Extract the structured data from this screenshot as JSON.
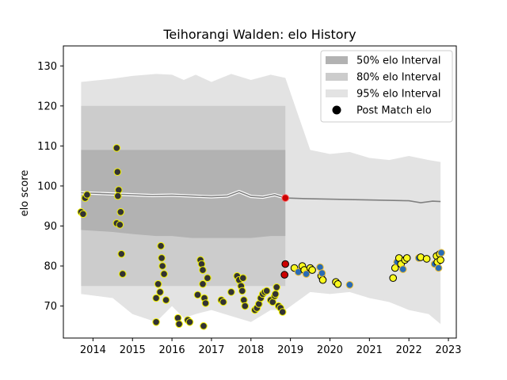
{
  "chart_data": {
    "type": "scatter",
    "title": "Teihorangi Walden: elo History",
    "xlabel": "",
    "ylabel": "elo score",
    "xlim": [
      2013.25,
      2023.2
    ],
    "ylim": [
      62,
      135
    ],
    "x_ticks": [
      "2014",
      "2015",
      "2016",
      "2017",
      "2018",
      "2019",
      "2020",
      "2021",
      "2022",
      "2023"
    ],
    "y_ticks": [
      "70",
      "80",
      "90",
      "100",
      "110",
      "120",
      "130"
    ],
    "grid": false,
    "legend_position": "top-right",
    "forecast_start": 2018.87,
    "colors": {
      "band_50": "#b2b2b2",
      "band_80": "#cccccc",
      "band_95": "#e3e3e3",
      "mean_line_history": "#808080",
      "mean_line_forecast": "#808080",
      "history_point_fill": "#333333",
      "history_point_edge": "#f2f200",
      "forecast_point_fill_a": "#fafa1e",
      "forecast_point_fill_b": "#2a6bb5",
      "forecast_point_edge_a": "#000000",
      "forecast_point_edge_b": "#f0c030",
      "current_point": "#cc0000"
    },
    "legend": [
      {
        "label": "50% elo Interval",
        "kind": "band_50"
      },
      {
        "label": "80% elo Interval",
        "kind": "band_80"
      },
      {
        "label": "95% elo Interval",
        "kind": "band_95"
      },
      {
        "label": "Post Match elo",
        "kind": "point"
      }
    ],
    "mean_line": [
      [
        2013.7,
        98.3
      ],
      [
        2014.5,
        98.0
      ],
      [
        2015.0,
        97.8
      ],
      [
        2015.5,
        97.6
      ],
      [
        2016.0,
        97.7
      ],
      [
        2016.5,
        97.5
      ],
      [
        2017.0,
        97.3
      ],
      [
        2017.4,
        97.5
      ],
      [
        2017.7,
        98.6
      ],
      [
        2018.0,
        97.4
      ],
      [
        2018.3,
        97.2
      ],
      [
        2018.6,
        97.8
      ],
      [
        2018.87,
        97.0
      ],
      [
        2019.5,
        96.8
      ],
      [
        2020.0,
        96.7
      ],
      [
        2020.5,
        96.6
      ],
      [
        2021.0,
        96.5
      ],
      [
        2021.5,
        96.4
      ],
      [
        2022.0,
        96.3
      ],
      [
        2022.3,
        95.8
      ],
      [
        2022.6,
        96.2
      ],
      [
        2022.8,
        96.1
      ]
    ],
    "band_95": {
      "x": [
        2013.7,
        2014.5,
        2015.0,
        2015.6,
        2016.0,
        2016.3,
        2016.6,
        2017.0,
        2017.5,
        2018.0,
        2018.5,
        2018.87,
        2019.5,
        2020.0,
        2020.5,
        2021.0,
        2021.5,
        2022.0,
        2022.5,
        2022.8
      ],
      "upper": [
        126.0,
        126.8,
        127.5,
        128.0,
        127.8,
        126.5,
        127.8,
        126.0,
        128.0,
        126.5,
        127.8,
        127.0,
        109.0,
        108.0,
        108.5,
        107.0,
        106.5,
        107.5,
        106.5,
        106.0
      ],
      "lower": [
        73.0,
        72.0,
        68.0,
        66.0,
        70.0,
        67.0,
        68.0,
        69.0,
        67.5,
        66.0,
        69.0,
        69.0,
        73.5,
        73.0,
        73.5,
        72.0,
        71.0,
        69.0,
        68.0,
        65.5
      ]
    },
    "band_80": {
      "x": [
        2013.7,
        2014.5,
        2015.0,
        2015.6,
        2016.0,
        2016.5,
        2017.0,
        2017.5,
        2018.0,
        2018.5,
        2018.87
      ],
      "upper": [
        120.0,
        120.0,
        120.0,
        120.0,
        120.0,
        120.0,
        120.0,
        120.0,
        120.0,
        120.0,
        120.0
      ],
      "lower": [
        75.0,
        75.0,
        75.0,
        75.0,
        75.0,
        75.0,
        75.0,
        75.0,
        75.0,
        75.0,
        75.0
      ]
    },
    "band_50": {
      "x": [
        2013.7,
        2014.5,
        2015.0,
        2015.6,
        2016.0,
        2016.5,
        2017.0,
        2017.5,
        2018.0,
        2018.5,
        2018.87
      ],
      "upper": [
        109.0,
        109.0,
        109.0,
        109.0,
        109.0,
        109.0,
        109.0,
        109.0,
        109.0,
        109.0,
        109.0
      ],
      "lower": [
        89.0,
        88.5,
        88.0,
        87.5,
        87.5,
        87.0,
        87.0,
        87.0,
        87.0,
        87.5,
        87.5
      ]
    },
    "history_points": [
      [
        2013.7,
        93.5
      ],
      [
        2013.75,
        93.0
      ],
      [
        2013.8,
        97.0
      ],
      [
        2013.85,
        97.8
      ],
      [
        2014.6,
        109.5
      ],
      [
        2014.62,
        103.5
      ],
      [
        2014.65,
        99.0
      ],
      [
        2014.63,
        97.5
      ],
      [
        2014.7,
        93.5
      ],
      [
        2014.6,
        90.7
      ],
      [
        2014.68,
        90.3
      ],
      [
        2014.72,
        83.0
      ],
      [
        2014.75,
        78.0
      ],
      [
        2015.6,
        72.0
      ],
      [
        2015.65,
        75.5
      ],
      [
        2015.7,
        73.5
      ],
      [
        2015.72,
        85.0
      ],
      [
        2015.74,
        82.0
      ],
      [
        2015.76,
        80.0
      ],
      [
        2015.8,
        78.0
      ],
      [
        2015.85,
        71.5
      ],
      [
        2015.6,
        66.0
      ],
      [
        2016.15,
        67.0
      ],
      [
        2016.18,
        65.5
      ],
      [
        2016.4,
        66.5
      ],
      [
        2016.45,
        66.0
      ],
      [
        2016.65,
        72.8
      ],
      [
        2016.72,
        81.5
      ],
      [
        2016.75,
        80.5
      ],
      [
        2016.78,
        79.0
      ],
      [
        2016.82,
        72.0
      ],
      [
        2016.85,
        70.7
      ],
      [
        2016.78,
        75.5
      ],
      [
        2016.9,
        77.0
      ],
      [
        2016.8,
        65.0
      ],
      [
        2017.25,
        71.5
      ],
      [
        2017.3,
        71.0
      ],
      [
        2017.5,
        73.5
      ],
      [
        2017.65,
        77.5
      ],
      [
        2017.7,
        76.5
      ],
      [
        2017.75,
        75.0
      ],
      [
        2017.78,
        73.8
      ],
      [
        2017.8,
        77.0
      ],
      [
        2017.82,
        71.5
      ],
      [
        2017.85,
        70.0
      ],
      [
        2018.1,
        69.0
      ],
      [
        2018.15,
        69.5
      ],
      [
        2018.2,
        70.5
      ],
      [
        2018.25,
        72.0
      ],
      [
        2018.3,
        73.0
      ],
      [
        2018.35,
        73.5
      ],
      [
        2018.4,
        73.8
      ],
      [
        2018.5,
        71.5
      ],
      [
        2018.55,
        71.0
      ],
      [
        2018.6,
        72.5
      ],
      [
        2018.62,
        73.0
      ],
      [
        2018.65,
        74.7
      ],
      [
        2018.7,
        70.0
      ],
      [
        2018.75,
        69.5
      ],
      [
        2018.8,
        68.5
      ],
      [
        2018.85,
        77.8
      ],
      [
        2018.87,
        80.5
      ]
    ],
    "current_point": [
      2018.87,
      97.0
    ],
    "forecast_points": [
      [
        2019.1,
        79.5
      ],
      [
        2019.2,
        78.5
      ],
      [
        2019.3,
        80.0
      ],
      [
        2019.35,
        79.0
      ],
      [
        2019.4,
        78.0
      ],
      [
        2019.5,
        79.5
      ],
      [
        2019.55,
        79.0
      ],
      [
        2019.75,
        79.7
      ],
      [
        2019.78,
        77.5
      ],
      [
        2019.82,
        76.5
      ],
      [
        2019.8,
        78.2
      ],
      [
        2020.15,
        76.0
      ],
      [
        2020.2,
        75.5
      ],
      [
        2020.5,
        75.3
      ],
      [
        2021.6,
        77.0
      ],
      [
        2021.65,
        79.5
      ],
      [
        2021.7,
        81.0
      ],
      [
        2021.75,
        82.0
      ],
      [
        2021.8,
        80.5
      ],
      [
        2021.85,
        79.2
      ],
      [
        2021.9,
        81.5
      ],
      [
        2021.95,
        82.0
      ],
      [
        2022.25,
        82.0
      ],
      [
        2022.3,
        82.2
      ],
      [
        2022.45,
        81.8
      ],
      [
        2022.65,
        80.5
      ],
      [
        2022.7,
        82.5
      ],
      [
        2022.72,
        81.0
      ],
      [
        2022.75,
        79.5
      ],
      [
        2022.78,
        83.0
      ],
      [
        2022.8,
        81.5
      ],
      [
        2022.82,
        83.3
      ]
    ]
  }
}
